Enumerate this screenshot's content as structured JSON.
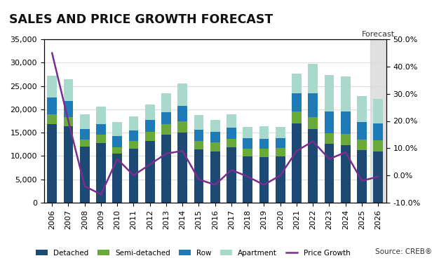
{
  "chart_data": {
    "type": "bar",
    "title": "SALES AND PRICE GROWTH FORECAST",
    "stacked": true,
    "categories": [
      "2006",
      "2007",
      "2008",
      "2009",
      "2010",
      "2011",
      "2012",
      "2013",
      "2014",
      "2015",
      "2016",
      "2017",
      "2018",
      "2019",
      "2020",
      "2021",
      "2022",
      "2023",
      "2024",
      "2025",
      "2026"
    ],
    "series": [
      {
        "name": "Detached",
        "color": "#1c4a75",
        "values": [
          16800,
          16300,
          12000,
          12800,
          10500,
          11600,
          13200,
          14500,
          15000,
          11400,
          11000,
          11800,
          9900,
          9800,
          9900,
          17000,
          15800,
          12600,
          12300,
          11200,
          11000
        ]
      },
      {
        "name": "Semi-detached",
        "color": "#6aaa3a",
        "values": [
          2200,
          2100,
          1500,
          1700,
          1400,
          1600,
          2000,
          2300,
          2500,
          1800,
          1900,
          1900,
          1700,
          1700,
          1800,
          2500,
          2500,
          2200,
          2400,
          2300,
          2300
        ]
      },
      {
        "name": "Row",
        "color": "#1f7ab8",
        "values": [
          3500,
          3400,
          2300,
          2300,
          2300,
          2300,
          2600,
          2600,
          3300,
          2400,
          2300,
          2300,
          2200,
          2100,
          2100,
          4000,
          5100,
          4700,
          4800,
          3800,
          3700
        ]
      },
      {
        "name": "Apartment",
        "color": "#a9d9cc",
        "values": [
          4700,
          4700,
          3200,
          3800,
          3000,
          3000,
          3300,
          4000,
          4800,
          3200,
          2600,
          2900,
          2400,
          2800,
          2400,
          4200,
          6300,
          7900,
          7500,
          5500,
          5200
        ]
      },
      {
        "name": "Price Growth",
        "type": "line",
        "axis": "y2",
        "color": "#7b2d8e",
        "values": [
          45,
          20,
          -4,
          -7,
          6,
          0,
          4,
          8,
          9,
          -1.5,
          -3.5,
          2,
          -0.5,
          -3.5,
          0,
          9,
          12.5,
          6,
          8.5,
          -2,
          -0.5
        ]
      }
    ],
    "ylim": [
      0,
      35000
    ],
    "yticks": [
      0,
      {
        "value": 5000,
        "label": "5,000"
      },
      {
        "value": 10000,
        "label": "10,000"
      },
      {
        "value": 15000,
        "label": "15,000"
      },
      {
        "value": 20000,
        "label": "20,000"
      },
      {
        "value": 25000,
        "label": "25,000"
      },
      {
        "value": 30000,
        "label": "30,000"
      },
      {
        "value": 35000,
        "label": "35,000"
      }
    ],
    "y2lim": [
      -10,
      50
    ],
    "y2ticks": [
      {
        "value": -10,
        "label": "-10.0%"
      },
      {
        "value": 0,
        "label": "0.0%"
      },
      {
        "value": 10,
        "label": "10.0%"
      },
      {
        "value": 20,
        "label": "20.0%"
      },
      {
        "value": 30,
        "label": "30.0%"
      },
      {
        "value": 40,
        "label": "40.0%"
      },
      {
        "value": 50,
        "label": "50.0%"
      }
    ],
    "grid": true,
    "legend": "lower center",
    "annotations": [
      {
        "text": "Forecast",
        "category": "2026"
      },
      {
        "text": "Source: CREB®"
      }
    ]
  }
}
